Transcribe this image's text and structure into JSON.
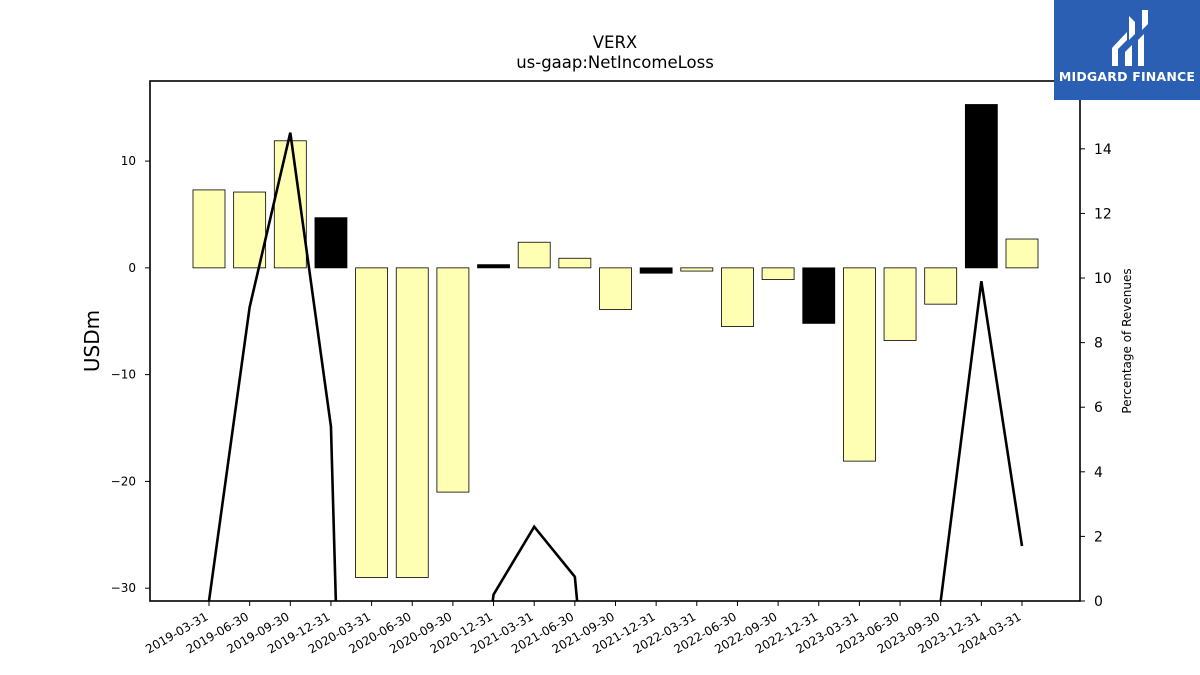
{
  "brand": {
    "name": "MIDGARD FINANCE",
    "bg_color": "#2b5fb4"
  },
  "chart_data": {
    "type": "bar",
    "title": "VERX",
    "subtitle": "us-gaap:NetIncomeLoss",
    "ylabel": "USDm",
    "y2label": "Percentage of Revenues",
    "categories": [
      "2019-03-31",
      "2019-06-30",
      "2019-09-30",
      "2019-12-31",
      "2020-03-31",
      "2020-06-30",
      "2020-09-30",
      "2020-12-31",
      "2021-03-31",
      "2021-06-30",
      "2021-09-30",
      "2021-12-31",
      "2022-03-31",
      "2022-06-30",
      "2022-09-30",
      "2022-12-31",
      "2023-03-31",
      "2023-06-30",
      "2023-09-30",
      "2023-12-31",
      "2024-03-31"
    ],
    "ylim": [
      -31.2,
      17.5
    ],
    "y_ticks": [
      10,
      0,
      -10,
      -20,
      -30
    ],
    "y2lim": [
      0,
      16.1
    ],
    "y2_ticks": [
      0,
      2,
      4,
      6,
      8,
      10,
      12,
      14,
      16
    ],
    "series": [
      {
        "type": "bar",
        "values": [
          7.3,
          7.1,
          11.9,
          4.7,
          -29.0,
          -29.0,
          -21.0,
          0.3,
          2.4,
          0.9,
          -3.9,
          -0.5,
          -0.3,
          -5.5,
          -1.1,
          -5.2,
          -18.1,
          -6.8,
          -3.4,
          15.3,
          2.7
        ],
        "colors": [
          "#ffffb3",
          "#ffffb3",
          "#ffffb3",
          "#000000",
          "#ffffb3",
          "#ffffb3",
          "#ffffb3",
          "#000000",
          "#ffffb3",
          "#ffffb3",
          "#ffffb3",
          "#000000",
          "#ffffb3",
          "#ffffb3",
          "#ffffb3",
          "#000000",
          "#ffffb3",
          "#ffffb3",
          "#ffffb3",
          "#000000",
          "#ffffb3"
        ]
      },
      {
        "type": "line",
        "axis": "right",
        "color": "#000000",
        "values": [
          0.0,
          9.1,
          14.5,
          5.4,
          null,
          null,
          null,
          0.2,
          2.3,
          0.75,
          null,
          null,
          null,
          null,
          null,
          null,
          null,
          null,
          0.0,
          9.9,
          1.7
        ]
      }
    ],
    "grid": false,
    "legend": "none"
  }
}
